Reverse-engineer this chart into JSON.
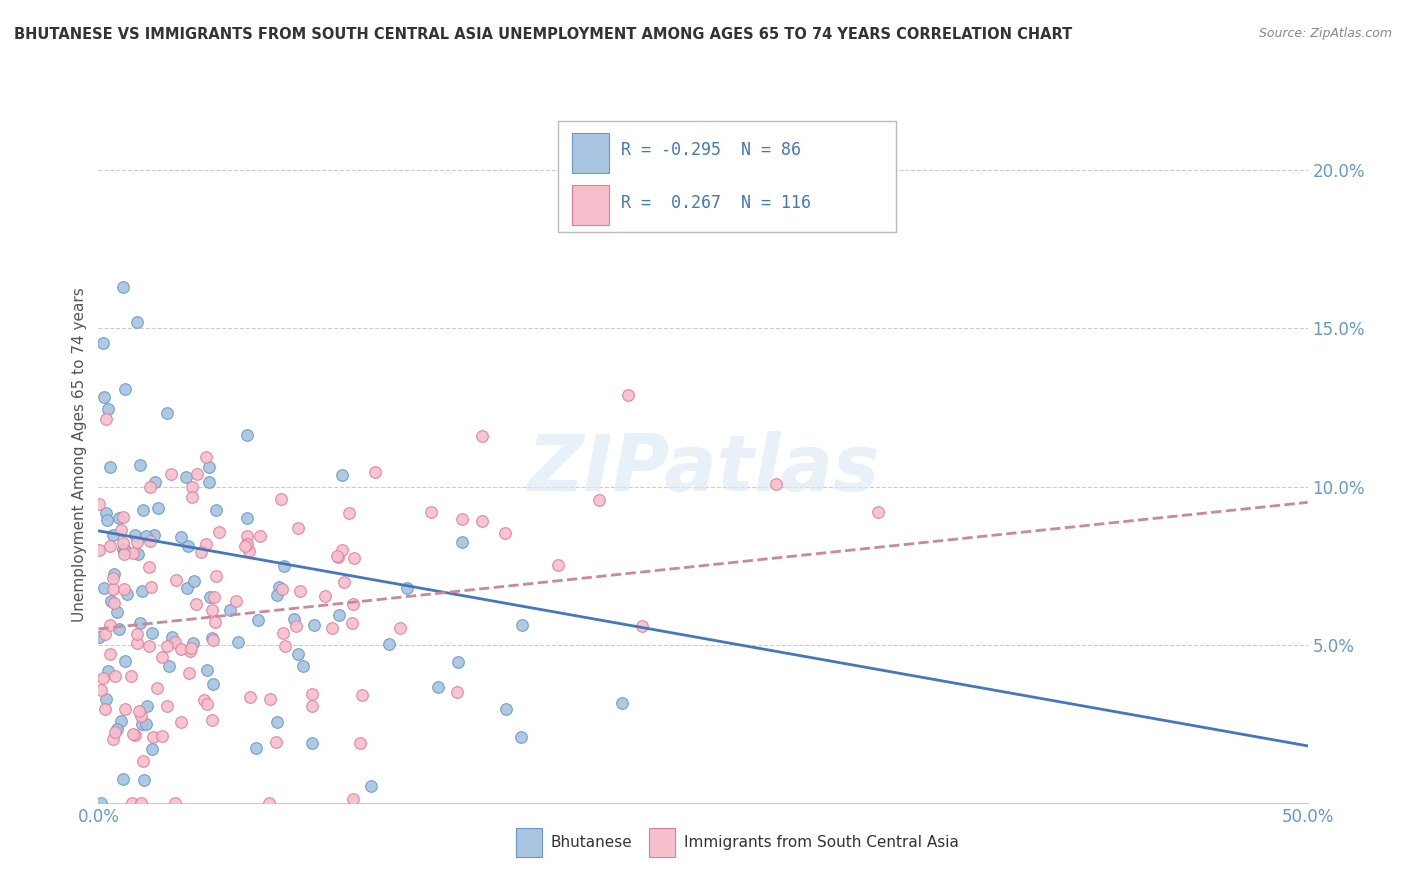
{
  "title": "BHUTANESE VS IMMIGRANTS FROM SOUTH CENTRAL ASIA UNEMPLOYMENT AMONG AGES 65 TO 74 YEARS CORRELATION CHART",
  "source": "Source: ZipAtlas.com",
  "ylabel": "Unemployment Among Ages 65 to 74 years",
  "xlim": [
    0.0,
    0.5
  ],
  "ylim": [
    0.0,
    0.22
  ],
  "yticks": [
    0.0,
    0.05,
    0.1,
    0.15,
    0.2
  ],
  "ytick_labels": [
    "",
    "5.0%",
    "10.0%",
    "15.0%",
    "20.0%"
  ],
  "xticks": [
    0.0,
    0.05,
    0.1,
    0.15,
    0.2,
    0.25,
    0.3,
    0.35,
    0.4,
    0.45,
    0.5
  ],
  "xtick_labels": [
    "0.0%",
    "",
    "",
    "",
    "",
    "",
    "",
    "",
    "",
    "",
    "50.0%"
  ],
  "blue_R": -0.295,
  "blue_N": 86,
  "pink_R": 0.267,
  "pink_N": 116,
  "blue_color": "#a8c4e0",
  "blue_edge": "#6699cc",
  "pink_color": "#f5c0cb",
  "pink_edge": "#e87a9a",
  "blue_line_color": "#4477bb",
  "pink_line_color": "#cc8899",
  "watermark": "ZIPatlas",
  "legend_blue_label": "Bhutanese",
  "legend_pink_label": "Immigrants from South Central Asia",
  "bg_color": "#ffffff",
  "grid_color": "#cccccc",
  "title_color": "#333333",
  "axis_label_color": "#6699cc",
  "blue_scatter_seed": 42,
  "pink_scatter_seed": 99,
  "blue_trend": [
    0.086,
    0.018
  ],
  "pink_trend": [
    0.055,
    0.095
  ]
}
